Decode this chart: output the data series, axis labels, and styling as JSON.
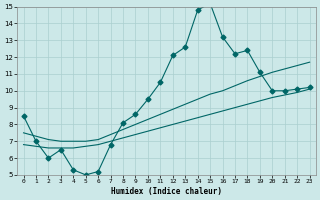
{
  "xlabel": "Humidex (Indice chaleur)",
  "xlim": [
    -0.5,
    23.5
  ],
  "ylim": [
    5,
    15
  ],
  "xticks": [
    0,
    1,
    2,
    3,
    4,
    5,
    6,
    7,
    8,
    9,
    10,
    11,
    12,
    13,
    14,
    15,
    16,
    17,
    18,
    19,
    20,
    21,
    22,
    23
  ],
  "yticks": [
    5,
    6,
    7,
    8,
    9,
    10,
    11,
    12,
    13,
    14,
    15
  ],
  "bg_color": "#cce8e8",
  "grid_color": "#aacfcf",
  "line_color": "#006666",
  "line1_x": [
    0,
    1,
    2,
    3,
    4,
    5,
    6,
    7,
    8,
    9,
    10,
    11,
    12,
    13,
    14,
    15,
    16,
    17,
    18,
    19,
    20,
    21,
    22,
    23
  ],
  "line1_y": [
    8.5,
    7.0,
    6.0,
    6.5,
    5.3,
    5.0,
    5.2,
    6.8,
    8.1,
    8.6,
    9.5,
    10.5,
    12.1,
    12.6,
    14.8,
    15.2,
    13.2,
    12.2,
    12.4,
    11.1,
    10.0,
    10.0,
    10.1,
    10.2
  ],
  "line2_x": [
    0,
    1,
    2,
    3,
    4,
    5,
    6,
    7,
    8,
    9,
    10,
    11,
    12,
    13,
    14,
    15,
    16,
    17,
    18,
    19,
    20,
    21,
    22,
    23
  ],
  "line2_y": [
    7.5,
    7.3,
    7.1,
    7.0,
    7.0,
    7.0,
    7.1,
    7.4,
    7.7,
    8.0,
    8.3,
    8.6,
    8.9,
    9.2,
    9.5,
    9.8,
    10.0,
    10.3,
    10.6,
    10.85,
    11.1,
    11.3,
    11.5,
    11.7
  ],
  "line3_x": [
    0,
    1,
    2,
    3,
    4,
    5,
    6,
    7,
    8,
    9,
    10,
    11,
    12,
    13,
    14,
    15,
    16,
    17,
    18,
    19,
    20,
    21,
    22,
    23
  ],
  "line3_y": [
    6.8,
    6.7,
    6.6,
    6.6,
    6.6,
    6.7,
    6.8,
    7.0,
    7.2,
    7.4,
    7.6,
    7.8,
    8.0,
    8.2,
    8.4,
    8.6,
    8.8,
    9.0,
    9.2,
    9.4,
    9.6,
    9.75,
    9.9,
    10.1
  ]
}
